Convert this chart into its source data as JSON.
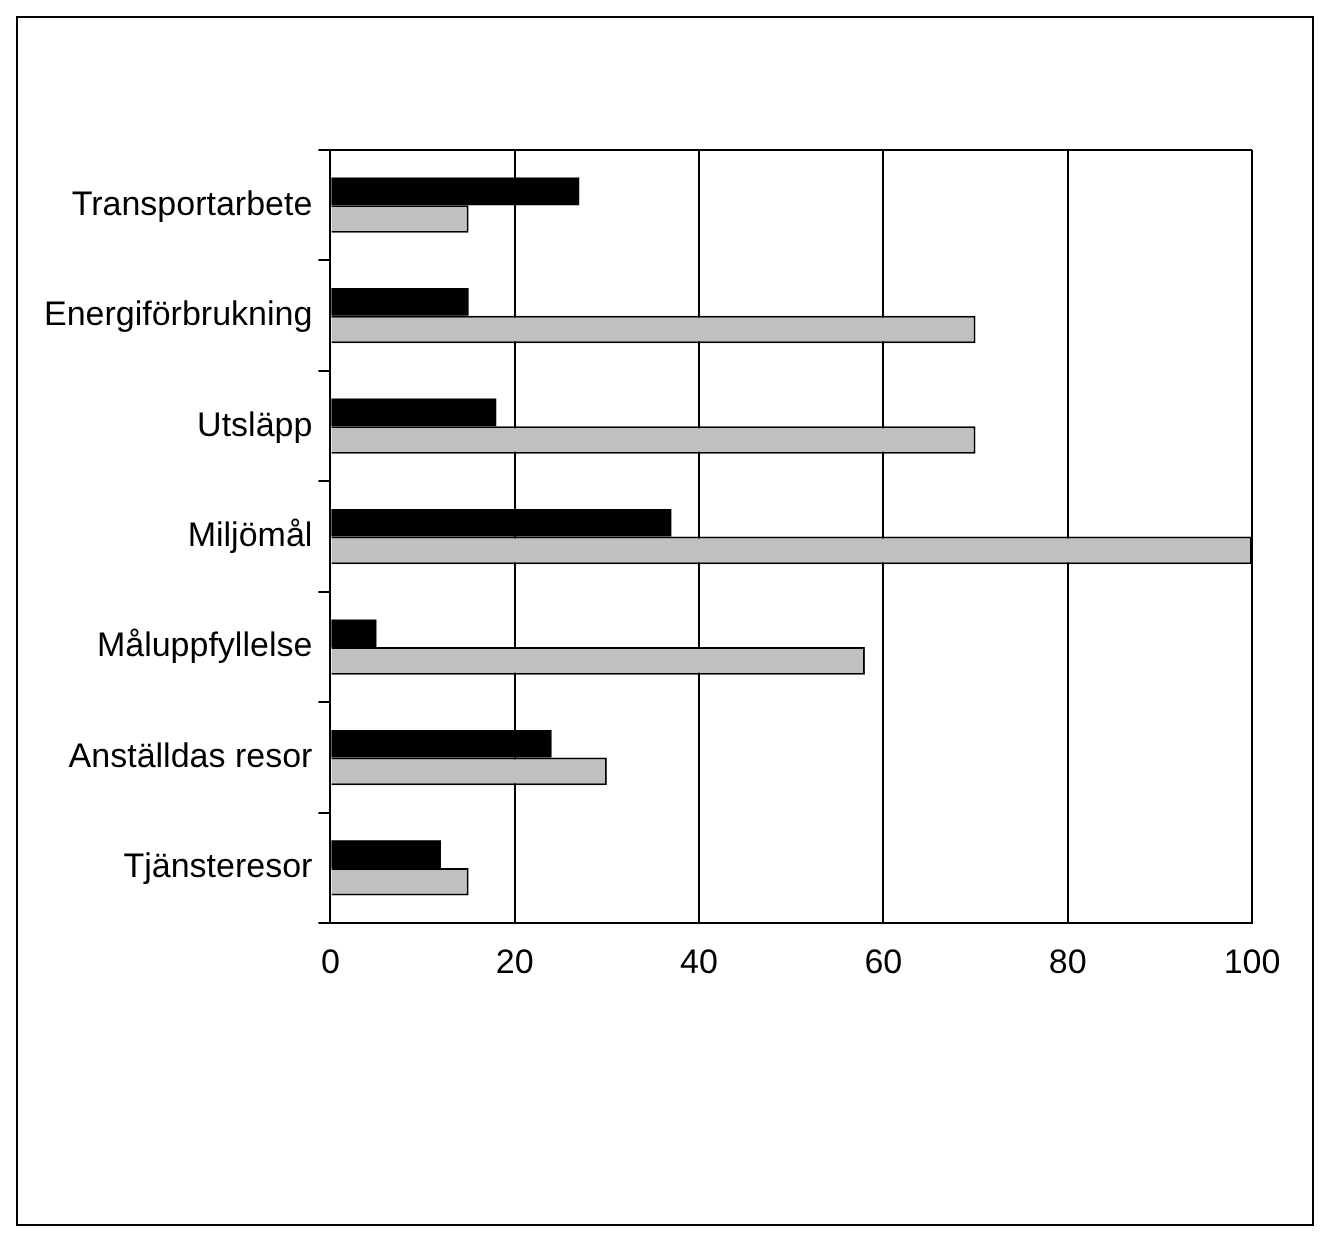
{
  "chart_data": {
    "type": "bar",
    "orientation": "horizontal",
    "categories": [
      "Transportarbete",
      "Energiförbrukning",
      "Utsläpp",
      "Miljömål",
      "Måluppfyllelse",
      "Anställdas resor",
      "Tjänsteresor"
    ],
    "series": [
      {
        "color": "#000000",
        "values": [
          27,
          15,
          18,
          37,
          5,
          24,
          12
        ]
      },
      {
        "color": "#c0c0c0",
        "values": [
          15,
          70,
          70,
          100,
          58,
          30,
          15
        ]
      }
    ],
    "xlim": [
      0,
      100
    ],
    "xticks": [
      0,
      20,
      40,
      60,
      80,
      100
    ],
    "grid": "x",
    "legend": false
  }
}
